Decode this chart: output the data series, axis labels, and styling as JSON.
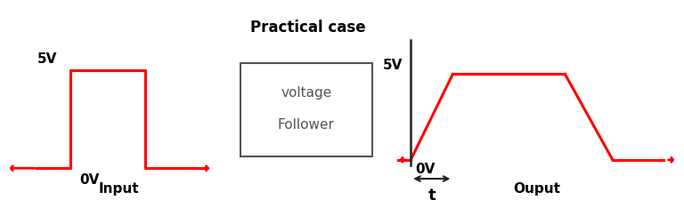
{
  "title": "Practical case",
  "input_label": "Input",
  "output_label": "Ouput",
  "box_text_line1": "voltage",
  "box_text_line2": "Follower",
  "signal_color": "#ff0000",
  "bg_color": "#ffffff",
  "text_color": "#000000",
  "axis_color": "#222222",
  "box_edge_color": "#555555",
  "box_face_color": "#ffffff",
  "label_5v": "5V",
  "label_0v": "0V",
  "label_t": "t",
  "input_xlim": [
    -0.5,
    5.0
  ],
  "input_ylim": [
    -1.5,
    7.0
  ],
  "output_xlim": [
    -0.5,
    9.5
  ],
  "output_ylim": [
    -2.2,
    7.5
  ]
}
